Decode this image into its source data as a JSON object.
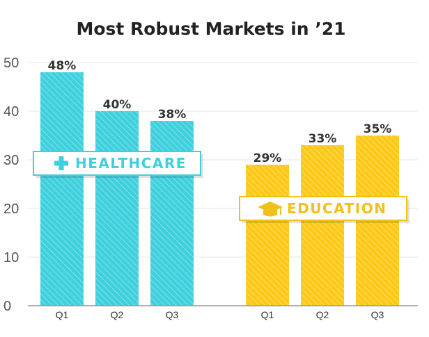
{
  "chart_data": {
    "type": "bar",
    "title": "Most Robust Markets in ’21",
    "xlabel": "",
    "ylabel": "",
    "ylim": [
      0,
      50
    ],
    "yticks": [
      0,
      10,
      20,
      30,
      40,
      50
    ],
    "grid": true,
    "series": [
      {
        "name": "HEALTHCARE",
        "icon": "plus-icon",
        "color": "#3fd0de",
        "categories": [
          "Q1",
          "Q2",
          "Q3"
        ],
        "values": [
          48,
          40,
          38
        ],
        "labels": [
          "48%",
          "40%",
          "38%"
        ]
      },
      {
        "name": "EDUCATION",
        "icon": "graduation-cap-icon",
        "color": "#fcc919",
        "categories": [
          "Q1",
          "Q2",
          "Q3"
        ],
        "values": [
          29,
          33,
          35
        ],
        "labels": [
          "29%",
          "33%",
          "35%"
        ]
      }
    ]
  }
}
